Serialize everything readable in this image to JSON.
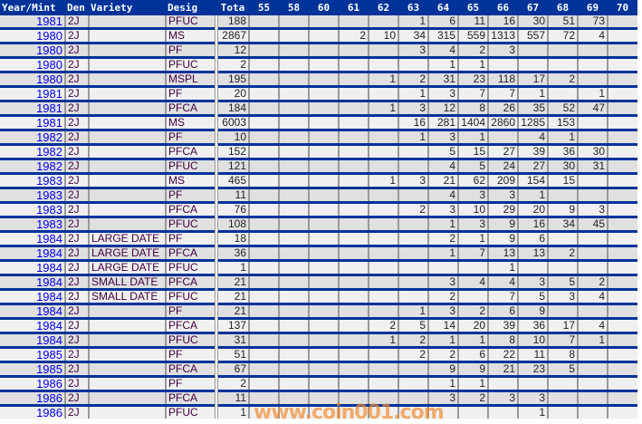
{
  "headers": [
    "Year/Mint",
    "Den",
    "Variety",
    "Desig",
    "Tota",
    "55",
    "58",
    "60",
    "61",
    "62",
    "63",
    "64",
    "65",
    "66",
    "67",
    "68",
    "69",
    "70"
  ],
  "rows": [
    {
      "year": "1981",
      "den": "2J",
      "variety": "",
      "desig": "PFUC",
      "total": "188",
      "counts": [
        "",
        "",
        "",
        "",
        "",
        "1",
        "6",
        "11",
        "16",
        "30",
        "51",
        "73",
        ""
      ]
    },
    {
      "year": "1980",
      "den": "2J",
      "variety": "",
      "desig": "MS",
      "total": "2867",
      "counts": [
        "",
        "",
        "",
        "2",
        "10",
        "34",
        "315",
        "559",
        "1313",
        "557",
        "72",
        "4",
        ""
      ]
    },
    {
      "year": "1980",
      "den": "2J",
      "variety": "",
      "desig": "PF",
      "total": "12",
      "counts": [
        "",
        "",
        "",
        "",
        "",
        "3",
        "4",
        "2",
        "3",
        "",
        "",
        "",
        ""
      ]
    },
    {
      "year": "1980",
      "den": "2J",
      "variety": "",
      "desig": "PFUC",
      "total": "2",
      "counts": [
        "",
        "",
        "",
        "",
        "",
        "",
        "1",
        "1",
        "",
        "",
        "",
        "",
        ""
      ]
    },
    {
      "year": "1980",
      "den": "2J",
      "variety": "",
      "desig": "MSPL",
      "total": "195",
      "counts": [
        "",
        "",
        "",
        "",
        "1",
        "2",
        "31",
        "23",
        "118",
        "17",
        "2",
        "",
        ""
      ]
    },
    {
      "year": "1981",
      "den": "2J",
      "variety": "",
      "desig": "PF",
      "total": "20",
      "counts": [
        "",
        "",
        "",
        "",
        "",
        "1",
        "3",
        "7",
        "7",
        "1",
        "",
        "1",
        ""
      ]
    },
    {
      "year": "1981",
      "den": "2J",
      "variety": "",
      "desig": "PFCA",
      "total": "184",
      "counts": [
        "",
        "",
        "",
        "",
        "1",
        "3",
        "12",
        "8",
        "26",
        "35",
        "52",
        "47",
        ""
      ]
    },
    {
      "year": "1981",
      "den": "2J",
      "variety": "",
      "desig": "MS",
      "total": "6003",
      "counts": [
        "",
        "",
        "",
        "",
        "",
        "16",
        "281",
        "1404",
        "2860",
        "1285",
        "153",
        "",
        ""
      ]
    },
    {
      "year": "1982",
      "den": "2J",
      "variety": "",
      "desig": "PF",
      "total": "10",
      "counts": [
        "",
        "",
        "",
        "",
        "",
        "1",
        "3",
        "1",
        "",
        "4",
        "1",
        "",
        ""
      ]
    },
    {
      "year": "1982",
      "den": "2J",
      "variety": "",
      "desig": "PFCA",
      "total": "152",
      "counts": [
        "",
        "",
        "",
        "",
        "",
        "",
        "5",
        "15",
        "27",
        "39",
        "36",
        "30",
        ""
      ]
    },
    {
      "year": "1982",
      "den": "2J",
      "variety": "",
      "desig": "PFUC",
      "total": "121",
      "counts": [
        "",
        "",
        "",
        "",
        "",
        "",
        "4",
        "5",
        "24",
        "27",
        "30",
        "31",
        ""
      ]
    },
    {
      "year": "1983",
      "den": "2J",
      "variety": "",
      "desig": "MS",
      "total": "465",
      "counts": [
        "",
        "",
        "",
        "",
        "1",
        "3",
        "21",
        "62",
        "209",
        "154",
        "15",
        "",
        ""
      ]
    },
    {
      "year": "1983",
      "den": "2J",
      "variety": "",
      "desig": "PF",
      "total": "11",
      "counts": [
        "",
        "",
        "",
        "",
        "",
        "",
        "4",
        "3",
        "3",
        "1",
        "",
        "",
        ""
      ]
    },
    {
      "year": "1983",
      "den": "2J",
      "variety": "",
      "desig": "PFCA",
      "total": "76",
      "counts": [
        "",
        "",
        "",
        "",
        "",
        "2",
        "3",
        "10",
        "29",
        "20",
        "9",
        "3",
        ""
      ]
    },
    {
      "year": "1983",
      "den": "2J",
      "variety": "",
      "desig": "PFUC",
      "total": "108",
      "counts": [
        "",
        "",
        "",
        "",
        "",
        "",
        "1",
        "3",
        "9",
        "16",
        "34",
        "45",
        ""
      ]
    },
    {
      "year": "1984",
      "den": "2J",
      "variety": "LARGE DATE",
      "desig": "PF",
      "total": "18",
      "counts": [
        "",
        "",
        "",
        "",
        "",
        "",
        "2",
        "1",
        "9",
        "6",
        "",
        "",
        ""
      ]
    },
    {
      "year": "1984",
      "den": "2J",
      "variety": "LARGE DATE",
      "desig": "PFCA",
      "total": "36",
      "counts": [
        "",
        "",
        "",
        "",
        "",
        "",
        "1",
        "7",
        "13",
        "13",
        "2",
        "",
        ""
      ]
    },
    {
      "year": "1984",
      "den": "2J",
      "variety": "LARGE DATE",
      "desig": "PFUC",
      "total": "1",
      "counts": [
        "",
        "",
        "",
        "",
        "",
        "",
        "",
        "",
        "1",
        "",
        "",
        "",
        ""
      ]
    },
    {
      "year": "1984",
      "den": "2J",
      "variety": "SMALL DATE",
      "desig": "PFCA",
      "total": "21",
      "counts": [
        "",
        "",
        "",
        "",
        "",
        "",
        "3",
        "4",
        "4",
        "3",
        "5",
        "2",
        ""
      ]
    },
    {
      "year": "1984",
      "den": "2J",
      "variety": "SMALL DATE",
      "desig": "PFUC",
      "total": "21",
      "counts": [
        "",
        "",
        "",
        "",
        "",
        "",
        "2",
        "",
        "7",
        "5",
        "3",
        "4",
        ""
      ]
    },
    {
      "year": "1984",
      "den": "2J",
      "variety": "",
      "desig": "PF",
      "total": "21",
      "counts": [
        "",
        "",
        "",
        "",
        "",
        "1",
        "3",
        "2",
        "6",
        "9",
        "",
        "",
        ""
      ]
    },
    {
      "year": "1984",
      "den": "2J",
      "variety": "",
      "desig": "PFCA",
      "total": "137",
      "counts": [
        "",
        "",
        "",
        "",
        "2",
        "5",
        "14",
        "20",
        "39",
        "36",
        "17",
        "4",
        ""
      ]
    },
    {
      "year": "1984",
      "den": "2J",
      "variety": "",
      "desig": "PFUC",
      "total": "31",
      "counts": [
        "",
        "",
        "",
        "",
        "1",
        "2",
        "1",
        "1",
        "8",
        "10",
        "7",
        "1",
        ""
      ]
    },
    {
      "year": "1985",
      "den": "2J",
      "variety": "",
      "desig": "PF",
      "total": "51",
      "counts": [
        "",
        "",
        "",
        "",
        "",
        "2",
        "2",
        "6",
        "22",
        "11",
        "8",
        "",
        ""
      ]
    },
    {
      "year": "1985",
      "den": "2J",
      "variety": "",
      "desig": "PFCA",
      "total": "67",
      "counts": [
        "",
        "",
        "",
        "",
        "",
        "",
        "9",
        "9",
        "21",
        "23",
        "5",
        "",
        ""
      ]
    },
    {
      "year": "1986",
      "den": "2J",
      "variety": "",
      "desig": "PF",
      "total": "2",
      "counts": [
        "",
        "",
        "",
        "",
        "",
        "",
        "1",
        "1",
        "",
        "",
        "",
        "",
        ""
      ]
    },
    {
      "year": "1986",
      "den": "2J",
      "variety": "",
      "desig": "PFCA",
      "total": "11",
      "counts": [
        "",
        "",
        "",
        "",
        "",
        "",
        "3",
        "2",
        "3",
        "3",
        "",
        "",
        ""
      ]
    },
    {
      "year": "1986",
      "den": "2J",
      "variety": "",
      "desig": "PFUC",
      "total": "1",
      "counts": [
        "",
        "",
        "",
        "",
        "",
        "",
        "",
        "",
        "",
        "1",
        "",
        "",
        ""
      ]
    }
  ],
  "watermark": "www.coin001.com",
  "colors": {
    "header_bg": "#003399",
    "row_separator": "#003399",
    "year_link": "#0000ee",
    "row_grey": "#e0e0e0",
    "row_light": "#f0f0f0"
  }
}
